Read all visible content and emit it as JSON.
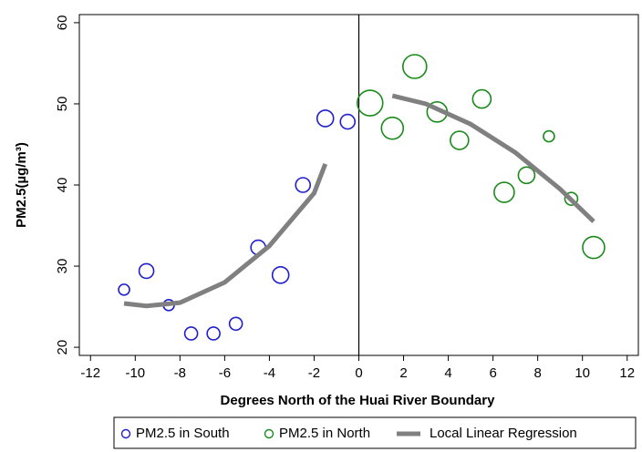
{
  "chart_data": {
    "type": "scatter",
    "xlabel": "Degrees North of the Huai River Boundary",
    "ylabel": "PM2.5(µg/m³)",
    "xlim": [
      -12.5,
      12.5
    ],
    "xticks": [
      -12,
      -10,
      -8,
      -6,
      -4,
      -2,
      0,
      2,
      4,
      6,
      8,
      10,
      12
    ],
    "ylim": [
      19,
      61
    ],
    "yticks": [
      20,
      30,
      40,
      50,
      60
    ],
    "xline": 0,
    "series": [
      {
        "name": "PM2.5 in South",
        "type": "scatter",
        "color": "#1f1fcc",
        "x": [
          -10.5,
          -9.5,
          -8.5,
          -7.5,
          -6.5,
          -5.5,
          -4.5,
          -3.5,
          -2.5,
          -1.5,
          -0.5
        ],
        "values": [
          27.1,
          29.4,
          25.2,
          21.7,
          21.7,
          22.9,
          32.3,
          28.9,
          40.0,
          48.2,
          47.8
        ],
        "sizes": [
          6,
          8,
          6,
          7,
          7,
          7,
          8,
          9,
          8,
          9,
          8
        ]
      },
      {
        "name": "PM2.5 in North",
        "type": "scatter",
        "color": "#1a8a1a",
        "x": [
          0.5,
          1.5,
          2.5,
          3.5,
          4.5,
          5.5,
          6.5,
          7.5,
          8.5,
          9.5,
          10.5
        ],
        "values": [
          50.1,
          47.0,
          54.6,
          49.0,
          45.5,
          50.6,
          39.1,
          41.2,
          46.0,
          38.3,
          32.3
        ],
        "sizes": [
          14,
          12,
          13,
          11,
          10,
          10,
          11,
          9,
          6,
          7,
          12
        ]
      },
      {
        "name": "Local Linear Regression",
        "type": "line",
        "color": "#808080",
        "x": [
          -10.5,
          -9.5,
          -8,
          -6,
          -4,
          -2,
          -1.5,
          null,
          1.5,
          3,
          5,
          7,
          9,
          10.5
        ],
        "values": [
          25.4,
          25.1,
          25.5,
          28,
          32.5,
          39,
          42.6,
          null,
          51,
          50,
          47.5,
          44,
          39.5,
          35.5
        ]
      }
    ]
  }
}
